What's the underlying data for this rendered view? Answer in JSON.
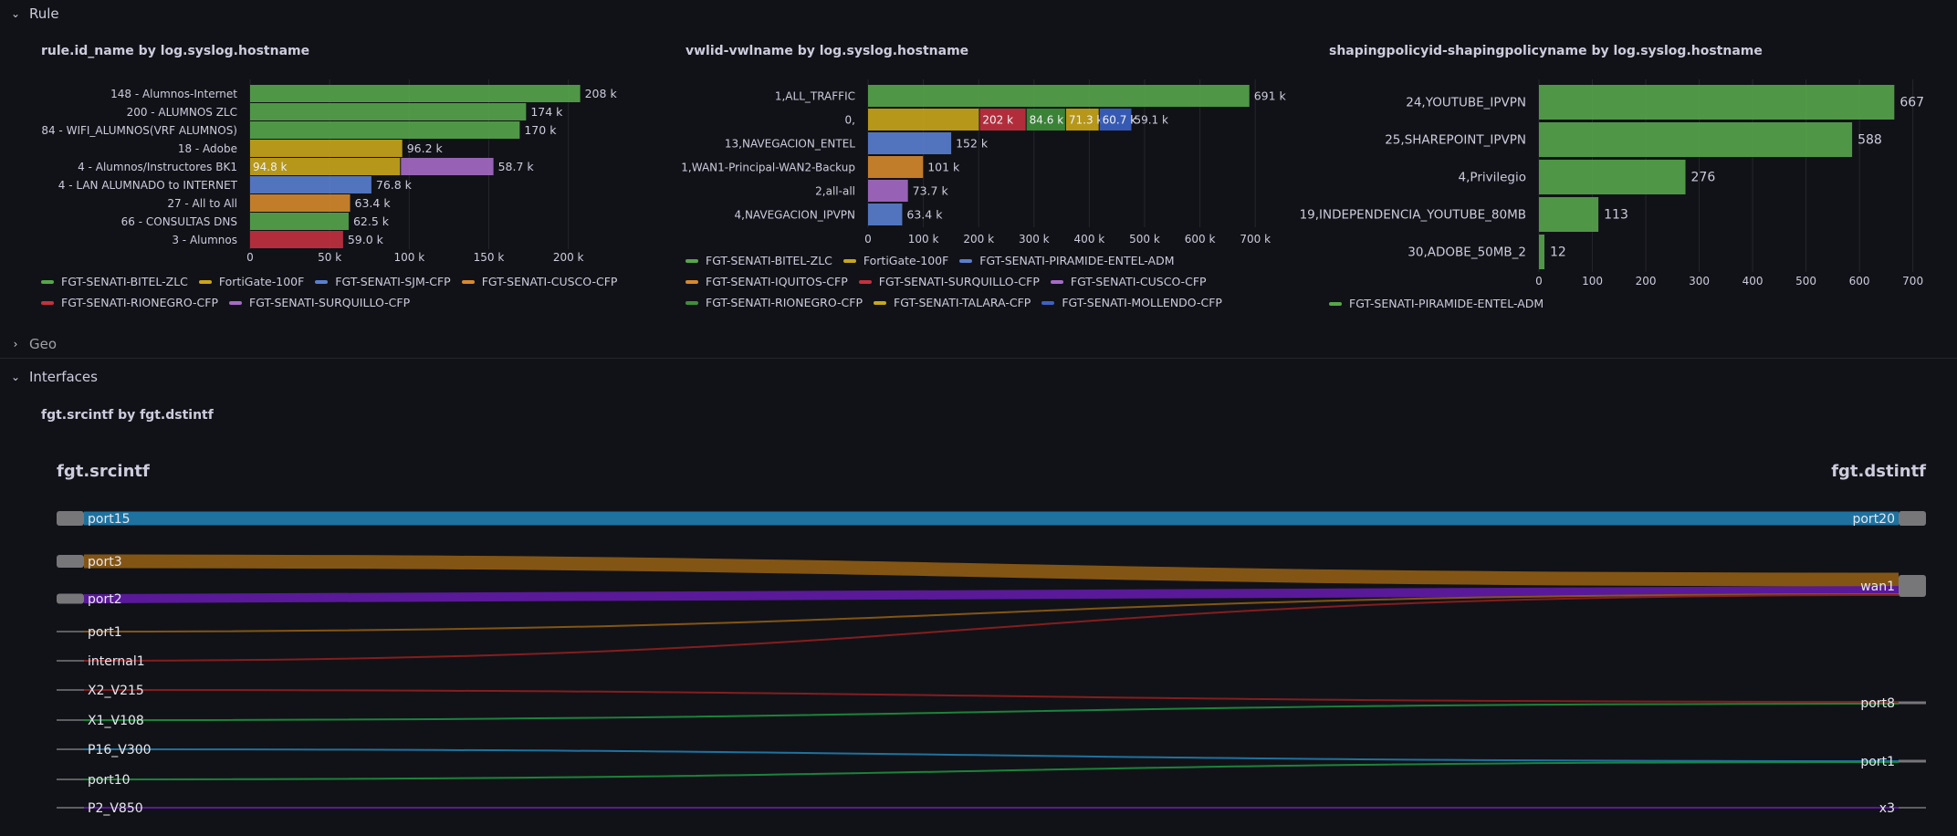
{
  "rows": {
    "rule": "Rule",
    "geo": "Geo",
    "interfaces": "Interfaces"
  },
  "colors": {
    "green": "#56a64b",
    "yellow": "#c9a61a",
    "blue": "#5a7fd0",
    "orange": "#d68a2e",
    "red": "#c4313f",
    "purple": "#a66bc6",
    "dkgreen": "#3f8f3a",
    "gold": "#c9a61a",
    "dkblue": "#3b62c4"
  },
  "chart_data": [
    {
      "type": "bar",
      "orientation": "horizontal",
      "stacked": true,
      "title": "rule.id_name by log.syslog.hostname",
      "categories": [
        "148 - Alumnos-Internet",
        "200 - ALUMNOS ZLC",
        "84 - WIFI_ALUMNOS(VRF ALUMNOS)",
        "18 - Adobe",
        "4 - Alumnos/Instructores BK1",
        "4 - LAN ALUMNADO to INTERNET",
        "27 - All to All",
        "66 - CONSULTAS DNS",
        "3 - Alumnos"
      ],
      "segments": [
        [
          {
            "series": 0,
            "value": 208000,
            "label": "208 k"
          }
        ],
        [
          {
            "series": 0,
            "value": 174000,
            "label": "174 k"
          }
        ],
        [
          {
            "series": 0,
            "value": 170000,
            "label": "170 k"
          }
        ],
        [
          {
            "series": 1,
            "value": 96200,
            "label": "96.2 k"
          }
        ],
        [
          {
            "series": 1,
            "value": 94800,
            "label": "94.8 k"
          },
          {
            "series": 5,
            "value": 58700,
            "label": "58.7 k"
          }
        ],
        [
          {
            "series": 2,
            "value": 76800,
            "label": "76.8 k"
          }
        ],
        [
          {
            "series": 3,
            "value": 63400,
            "label": "63.4 k"
          }
        ],
        [
          {
            "series": 0,
            "value": 62500,
            "label": "62.5 k"
          }
        ],
        [
          {
            "series": 4,
            "value": 59000,
            "label": "59.0 k"
          }
        ]
      ],
      "xticks": [
        "0",
        "50 k",
        "100 k",
        "150 k",
        "200 k"
      ],
      "xtick_values": [
        0,
        50000,
        100000,
        150000,
        200000
      ],
      "xlim": [
        0,
        226000
      ],
      "legend_placement": "bottom",
      "legend": [
        {
          "name": "FGT-SENATI-BITEL-ZLC",
          "color": "green"
        },
        {
          "name": "FortiGate-100F",
          "color": "yellow"
        },
        {
          "name": "FGT-SENATI-SJM-CFP",
          "color": "blue"
        },
        {
          "name": "FGT-SENATI-CUSCO-CFP",
          "color": "orange"
        },
        {
          "name": "FGT-SENATI-RIONEGRO-CFP",
          "color": "red"
        },
        {
          "name": "FGT-SENATI-SURQUILLO-CFP",
          "color": "purple"
        }
      ],
      "legend_rows": [
        4,
        2
      ]
    },
    {
      "type": "bar",
      "orientation": "horizontal",
      "stacked": true,
      "title": "vwlid-vwlname by log.syslog.hostname",
      "categories": [
        "1,ALL_TRAFFIC",
        "0,",
        "13,NAVEGACION_ENTEL",
        "1,WAN1-Principal-WAN2-Backup",
        "2,all-all",
        "4,NAVEGACION_IPVPN"
      ],
      "segments": [
        [
          {
            "series": 0,
            "value": 691000,
            "label": "691 k"
          }
        ],
        [
          {
            "series": 1,
            "value": 202000,
            "label": ""
          },
          {
            "series": 4,
            "value": 84600,
            "label": "202 k",
            "inside": true
          },
          {
            "series": 6,
            "value": 71300,
            "label": "84.6 k",
            "inside": true
          },
          {
            "series": 7,
            "value": 60700,
            "label": "71.3 k",
            "inside": true
          },
          {
            "series": 8,
            "value": 59100,
            "label": "60.7 k",
            "inside": true
          },
          {
            "series": -1,
            "value": 0,
            "label": "59.1 k"
          }
        ],
        [
          {
            "series": 2,
            "value": 152000,
            "label": "152 k"
          }
        ],
        [
          {
            "series": 3,
            "value": 101000,
            "label": "101 k"
          }
        ],
        [
          {
            "series": 5,
            "value": 73700,
            "label": "73.7 k"
          }
        ],
        [
          {
            "series": 2,
            "value": 63400,
            "label": "63.4 k"
          }
        ]
      ],
      "xticks": [
        "0",
        "100 k",
        "200 k",
        "300 k",
        "400 k",
        "500 k",
        "600 k",
        "700 k"
      ],
      "xtick_values": [
        0,
        100000,
        200000,
        300000,
        400000,
        500000,
        600000,
        700000
      ],
      "xlim": [
        0,
        736000
      ],
      "legend_placement": "bottom",
      "legend": [
        {
          "name": "FGT-SENATI-BITEL-ZLC",
          "color": "green"
        },
        {
          "name": "FortiGate-100F",
          "color": "yellow"
        },
        {
          "name": "FGT-SENATI-PIRAMIDE-ENTEL-ADM",
          "color": "blue"
        },
        {
          "name": "FGT-SENATI-IQUITOS-CFP",
          "color": "orange"
        },
        {
          "name": "FGT-SENATI-SURQUILLO-CFP",
          "color": "red"
        },
        {
          "name": "FGT-SENATI-CUSCO-CFP",
          "color": "purple"
        },
        {
          "name": "FGT-SENATI-RIONEGRO-CFP",
          "color": "dkgreen"
        },
        {
          "name": "FGT-SENATI-TALARA-CFP",
          "color": "gold"
        },
        {
          "name": "FGT-SENATI-MOLLENDO-CFP",
          "color": "dkblue"
        }
      ],
      "legend_rows": [
        3,
        3,
        3
      ]
    },
    {
      "type": "bar",
      "orientation": "horizontal",
      "title": "shapingpolicyid-shapingpolicyname by log.syslog.hostname",
      "categories": [
        "24,YOUTUBE_IPVPN",
        "25,SHAREPOINT_IPVPN",
        "4,Privilegio",
        "19,INDEPENDENCIA_YOUTUBE_80MB",
        "30,ADOBE_50MB_2"
      ],
      "segments": [
        [
          {
            "series": 0,
            "value": 667,
            "label": "667"
          }
        ],
        [
          {
            "series": 0,
            "value": 588,
            "label": "588"
          }
        ],
        [
          {
            "series": 0,
            "value": 276,
            "label": "276"
          }
        ],
        [
          {
            "series": 0,
            "value": 113,
            "label": "113"
          }
        ],
        [
          {
            "series": 0,
            "value": 12,
            "label": "12"
          }
        ]
      ],
      "xticks": [
        "0",
        "100",
        "200",
        "300",
        "400",
        "500",
        "600",
        "700"
      ],
      "xtick_values": [
        0,
        100,
        200,
        300,
        400,
        500,
        600,
        700
      ],
      "xlim": [
        0,
        716
      ],
      "legend_placement": "bottom",
      "legend": [
        {
          "name": "FGT-SENATI-PIRAMIDE-ENTEL-ADM",
          "color": "green"
        }
      ],
      "legend_rows": [
        1
      ]
    },
    {
      "type": "sankey",
      "title": "fgt.srcintf by fgt.dstintf",
      "source_header": "fgt.srcintf",
      "target_header": "fgt.dstintf",
      "sources": [
        "port15",
        "port3",
        "port2",
        "port1",
        "internal1",
        "X2_V215",
        "X1_V108",
        "P16_V300",
        "port10",
        "P2_V850"
      ],
      "targets": [
        "port20",
        "wan1",
        "port8",
        "port1",
        "x3"
      ],
      "links": [
        {
          "source": "port15",
          "target": "port20",
          "color": "#1f78a8",
          "weight": "large"
        },
        {
          "source": "port3",
          "target": "wan1",
          "color": "#8a5a14",
          "weight": "large"
        },
        {
          "source": "port2",
          "target": "wan1",
          "color": "#5e1aa0",
          "weight": "medium"
        },
        {
          "source": "port1",
          "target": "wan1",
          "color": "#8a5a14",
          "weight": "small"
        },
        {
          "source": "internal1",
          "target": "wan1",
          "color": "#8c1f1f",
          "weight": "small"
        },
        {
          "source": "X2_V215",
          "target": "port8",
          "color": "#8c1f1f",
          "weight": "small"
        },
        {
          "source": "X1_V108",
          "target": "port8",
          "color": "#1c8a3c",
          "weight": "small"
        },
        {
          "source": "P16_V300",
          "target": "port1",
          "color": "#1f78a8",
          "weight": "small"
        },
        {
          "source": "port10",
          "target": "port1",
          "color": "#1c8a3c",
          "weight": "small"
        },
        {
          "source": "P2_V850",
          "target": "x3",
          "color": "#5e1aa0",
          "weight": "small"
        }
      ]
    }
  ]
}
